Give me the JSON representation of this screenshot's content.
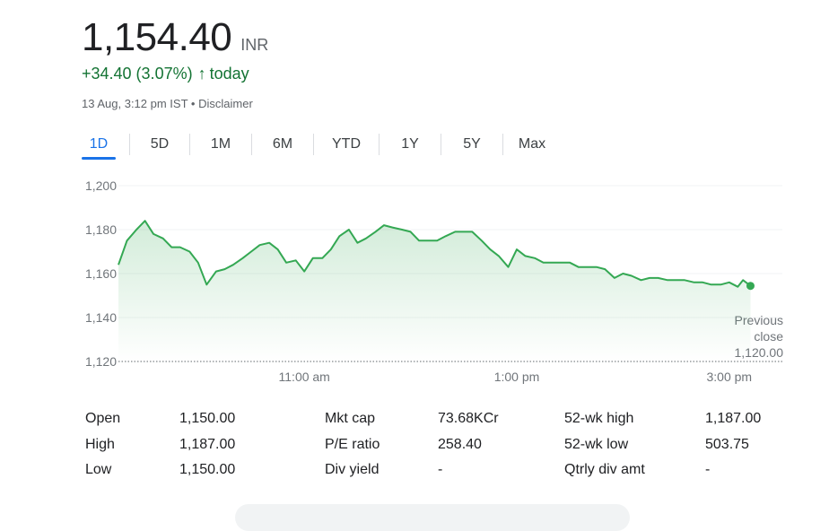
{
  "quote": {
    "price": "1,154.40",
    "currency": "INR",
    "change": "+34.40 (3.07%)",
    "arrow": "↑",
    "period": "today",
    "timestamp": "13 Aug, 3:12 pm IST",
    "separator": "•",
    "disclaimer": "Disclaimer"
  },
  "tabs": [
    "1D",
    "5D",
    "1M",
    "6M",
    "YTD",
    "1Y",
    "5Y",
    "Max"
  ],
  "active_tab": "1D",
  "colors": {
    "line": "#34a853",
    "positive_text": "#137333",
    "accent": "#1a73e8",
    "grid": "#f1f3f4"
  },
  "chart_data": {
    "type": "line",
    "y_ticks": [
      "1,200",
      "1,180",
      "1,160",
      "1,140",
      "1,120"
    ],
    "ylim": [
      1120,
      1200
    ],
    "x_tick_labels": [
      "11:00 am",
      "1:00 pm",
      "3:00 pm"
    ],
    "x_tick_hours": [
      11,
      13,
      15
    ],
    "xlim_hours": [
      9.25,
      15.5
    ],
    "previous_close": {
      "label_line1": "Previous",
      "label_line2": "close",
      "value_text": "1,120.00",
      "value": 1120
    },
    "series": [
      {
        "x": [
          9.25,
          9.33,
          9.42,
          9.5,
          9.58,
          9.67,
          9.75,
          9.83,
          9.92,
          10.0,
          10.08,
          10.17,
          10.25,
          10.33,
          10.42,
          10.5,
          10.58,
          10.67,
          10.75,
          10.83,
          10.92,
          11.0,
          11.08,
          11.17,
          11.25,
          11.33,
          11.42,
          11.5,
          11.58,
          11.67,
          11.75,
          11.83,
          11.92,
          12.0,
          12.08,
          12.17,
          12.25,
          12.33,
          12.42,
          12.5,
          12.58,
          12.67,
          12.75,
          12.83,
          12.92,
          13.0,
          13.08,
          13.17,
          13.25,
          13.33,
          13.42,
          13.5,
          13.58,
          13.67,
          13.75,
          13.83,
          13.92,
          14.0,
          14.08,
          14.17,
          14.25,
          14.33,
          14.42,
          14.5,
          14.58,
          14.67,
          14.75,
          14.83,
          14.92,
          15.0,
          15.08,
          15.13,
          15.2
        ],
        "y": [
          1164,
          1175,
          1180,
          1184,
          1178,
          1176,
          1172,
          1172,
          1170,
          1165,
          1155,
          1161,
          1162,
          1164,
          1167,
          1170,
          1173,
          1174,
          1171,
          1165,
          1166,
          1161,
          1167,
          1167,
          1171,
          1177,
          1180,
          1174,
          1176,
          1179,
          1182,
          1181,
          1180,
          1179,
          1175,
          1175,
          1175,
          1177,
          1179,
          1179,
          1179,
          1175,
          1171,
          1168,
          1163,
          1171,
          1168,
          1167,
          1165,
          1165,
          1165,
          1165,
          1163,
          1163,
          1163,
          1162,
          1158,
          1160,
          1159,
          1157,
          1158,
          1158,
          1157,
          1157,
          1157,
          1156,
          1156,
          1155,
          1155,
          1156,
          1154,
          1157,
          1154.4
        ]
      }
    ]
  },
  "stats": [
    [
      {
        "label": "Open",
        "value": "1,150.00"
      },
      {
        "label": "Mkt cap",
        "value": "73.68KCr"
      },
      {
        "label": "52-wk high",
        "value": "1,187.00"
      }
    ],
    [
      {
        "label": "High",
        "value": "1,187.00"
      },
      {
        "label": "P/E ratio",
        "value": "258.40"
      },
      {
        "label": "52-wk low",
        "value": "503.75"
      }
    ],
    [
      {
        "label": "Low",
        "value": "1,150.00"
      },
      {
        "label": "Div yield",
        "value": "-"
      },
      {
        "label": "Qtrly div amt",
        "value": "-"
      }
    ]
  ]
}
